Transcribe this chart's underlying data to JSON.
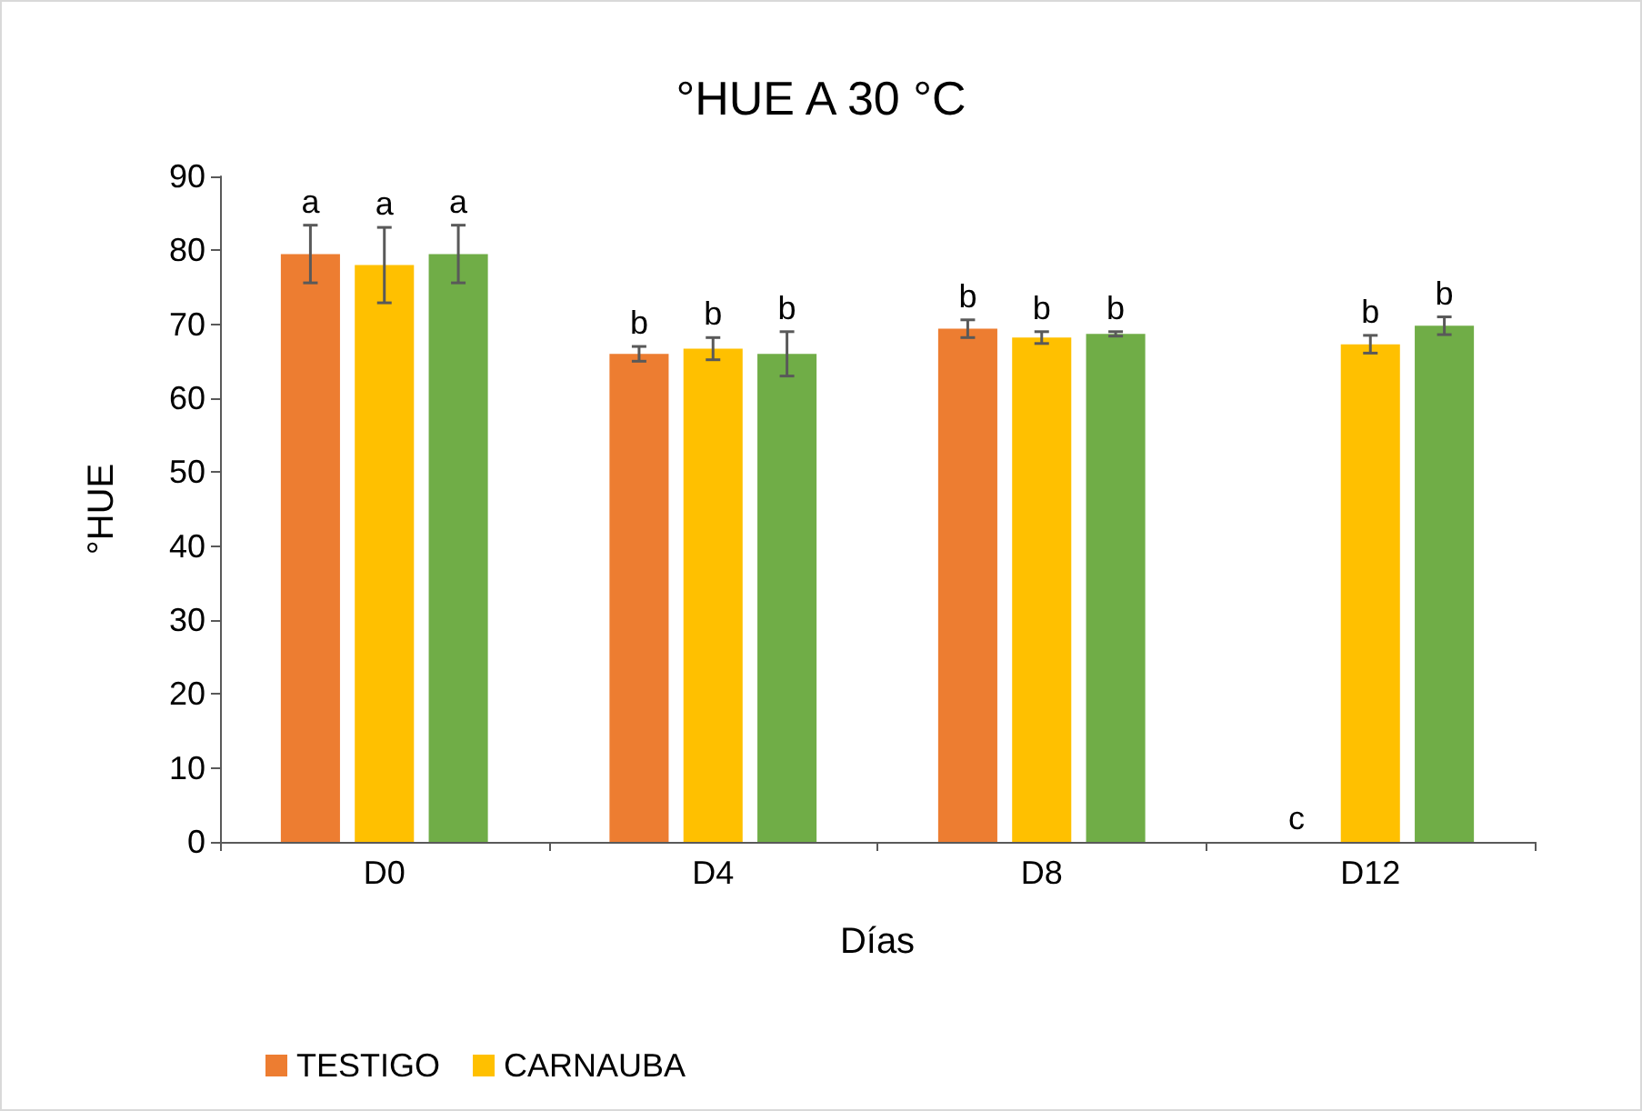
{
  "chart_data": {
    "type": "bar",
    "title": "°HUE A 30 °C",
    "xlabel": "Días",
    "ylabel": "°HUE",
    "categories": [
      "D0",
      "D4",
      "D8",
      "D12"
    ],
    "series": [
      {
        "name": "TESTIGO",
        "color": "#ed7d31",
        "values": [
          79.5,
          66.0,
          69.4,
          0
        ],
        "errors": [
          3.9,
          1.0,
          1.2,
          null
        ]
      },
      {
        "name": "CARNAUBA",
        "color": "#ffc000",
        "values": [
          78.0,
          66.7,
          68.2,
          67.3
        ],
        "errors": [
          5.1,
          1.5,
          0.8,
          1.2
        ]
      },
      {
        "color": "#70ad47",
        "values": [
          79.5,
          66.0,
          68.7,
          69.8
        ],
        "errors": [
          3.9,
          3.0,
          0.3,
          1.2
        ]
      }
    ],
    "annotations": [
      "a",
      "a",
      "a",
      "b",
      "b",
      "b",
      "b",
      "b",
      "b",
      "c",
      "b",
      "b"
    ],
    "ylim": [
      0,
      90
    ],
    "yticks": [
      0,
      10,
      20,
      30,
      40,
      50,
      60,
      70,
      80,
      90
    ],
    "grid": false,
    "legend": "bottom"
  }
}
